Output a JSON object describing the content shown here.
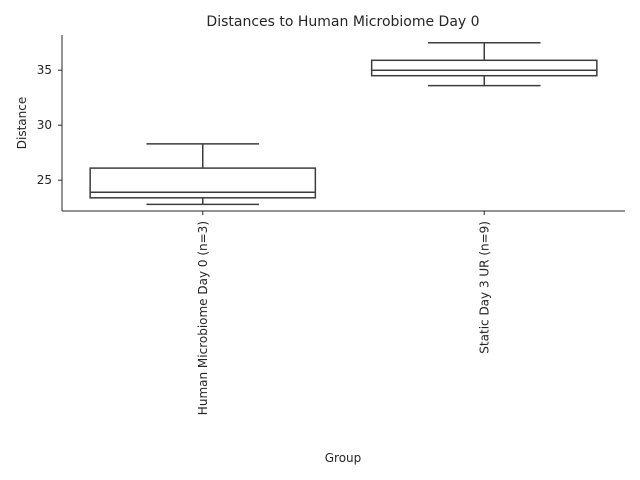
{
  "chart_data": {
    "type": "box",
    "title": "Distances to Human Microbiome Day 0",
    "xlabel": "Group",
    "ylabel": "Distance",
    "ylim": [
      22.2,
      38.2
    ],
    "yticks": [
      25,
      30,
      35
    ],
    "grid": false,
    "categories": [
      "Human Microbiome Day 0 (n=3)",
      "Static Day 3 UR (n=9)"
    ],
    "boxes": [
      {
        "whisker_low": 22.8,
        "q1": 23.4,
        "median": 23.9,
        "q3": 26.1,
        "whisker_high": 28.3
      },
      {
        "whisker_low": 33.6,
        "q1": 34.5,
        "median": 35.0,
        "q3": 35.9,
        "whisker_high": 37.5
      }
    ],
    "box_color": "#3d3d3d"
  }
}
